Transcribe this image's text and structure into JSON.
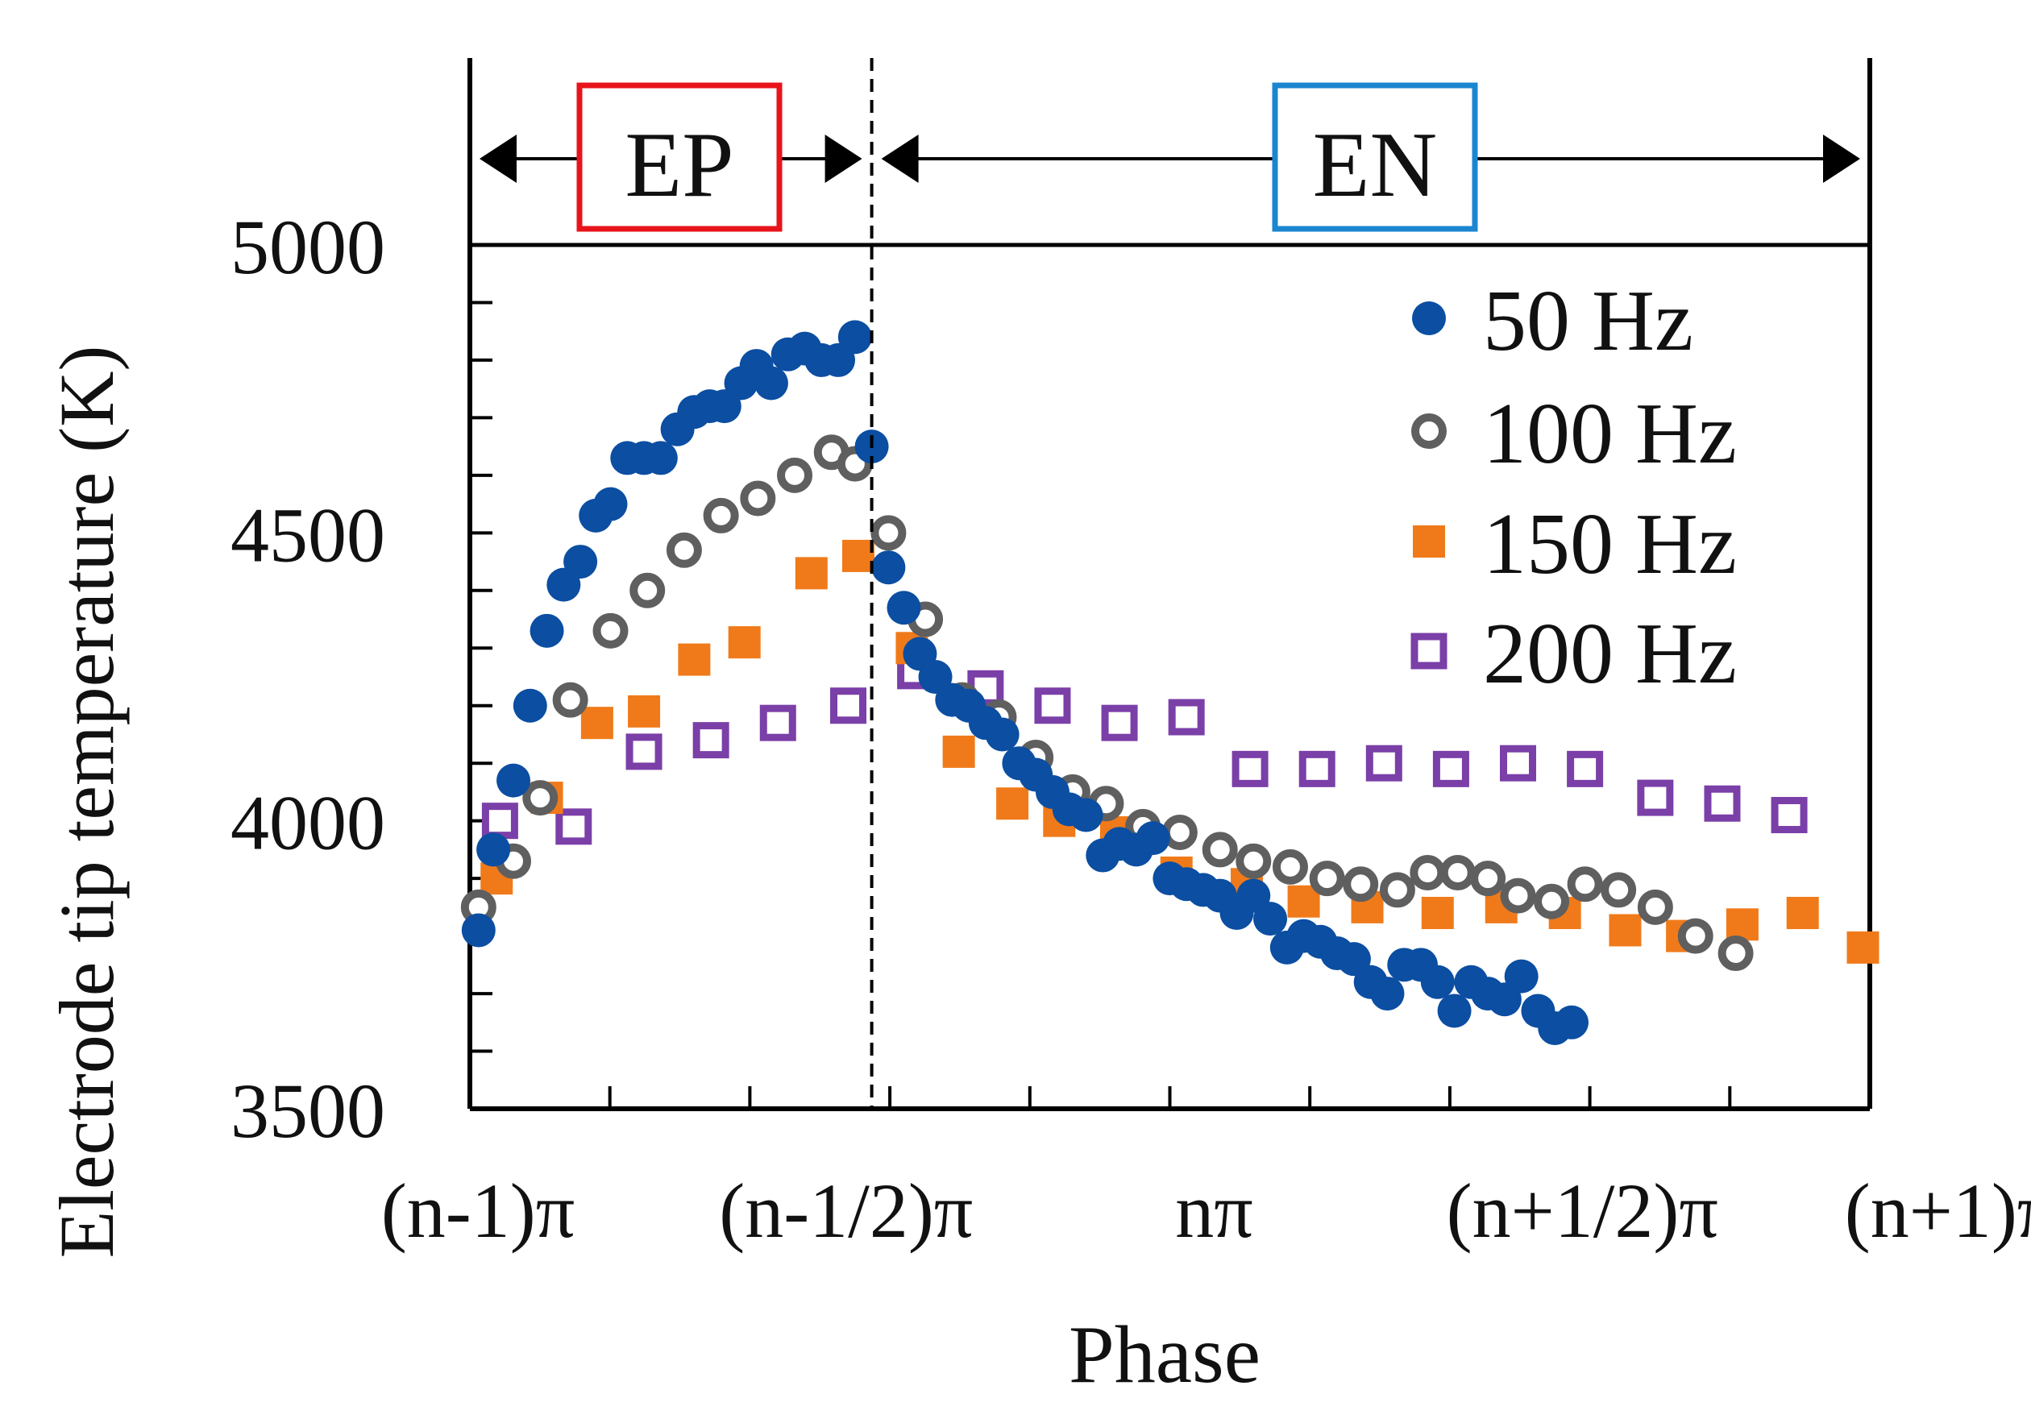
{
  "chart_data": {
    "type": "scatter",
    "xlabel": "Phase",
    "ylabel": "Electrode tip temperature (K)",
    "xlim": [
      0,
      2
    ],
    "ylim": [
      3500,
      5000
    ],
    "xticks": [
      0,
      0.2,
      0.4,
      0.6,
      0.8,
      1.0,
      1.2,
      1.4,
      1.6,
      1.8,
      2.0
    ],
    "xtick_labels": [
      {
        "x": 0,
        "label": "(n-1)π"
      },
      {
        "x": 0.5,
        "label": "(n-1/2)π"
      },
      {
        "x": 1.0,
        "label": "nπ"
      },
      {
        "x": 1.5,
        "label": "(n+1/2)π"
      },
      {
        "x": 2.0,
        "label": "(n+1)π"
      }
    ],
    "yticks": [
      3500,
      3600,
      3700,
      3800,
      3900,
      4000,
      4100,
      4200,
      4300,
      4400,
      4500,
      4600,
      4700,
      4800,
      4900,
      5000
    ],
    "ytick_labels": [
      {
        "y": 3500,
        "label": "3500"
      },
      {
        "y": 4000,
        "label": "4000"
      },
      {
        "y": 4500,
        "label": "4500"
      },
      {
        "y": 5000,
        "label": "5000"
      }
    ],
    "divider_x": 0.6,
    "regions": [
      {
        "label": "EP",
        "x_start": 0,
        "x_end": 0.6,
        "color": "#e8141b"
      },
      {
        "label": "EN",
        "x_start": 0.6,
        "x_end": 2.0,
        "color": "#1b86d0"
      }
    ],
    "legend_position": "top-right",
    "series": [
      {
        "name": "50 Hz",
        "marker": "filled-circle",
        "color": "#0b4ea2",
        "points": [
          [
            0.013,
            3810
          ],
          [
            0.035,
            3950
          ],
          [
            0.065,
            4070
          ],
          [
            0.09,
            4200
          ],
          [
            0.115,
            4330
          ],
          [
            0.14,
            4410
          ],
          [
            0.165,
            4450
          ],
          [
            0.188,
            4530
          ],
          [
            0.21,
            4550
          ],
          [
            0.235,
            4630
          ],
          [
            0.26,
            4630
          ],
          [
            0.285,
            4630
          ],
          [
            0.31,
            4680
          ],
          [
            0.335,
            4710
          ],
          [
            0.358,
            4720
          ],
          [
            0.38,
            4720
          ],
          [
            0.405,
            4760
          ],
          [
            0.428,
            4790
          ],
          [
            0.45,
            4760
          ],
          [
            0.475,
            4810
          ],
          [
            0.5,
            4820
          ],
          [
            0.525,
            4800
          ],
          [
            0.55,
            4800
          ],
          [
            0.575,
            4840
          ],
          [
            0.6,
            4650
          ],
          [
            0.625,
            4440
          ],
          [
            0.648,
            4370
          ],
          [
            0.672,
            4290
          ],
          [
            0.695,
            4250
          ],
          [
            0.72,
            4210
          ],
          [
            0.745,
            4200
          ],
          [
            0.77,
            4170
          ],
          [
            0.795,
            4150
          ],
          [
            0.82,
            4100
          ],
          [
            0.845,
            4080
          ],
          [
            0.87,
            4050
          ],
          [
            0.895,
            4020
          ],
          [
            0.92,
            4010
          ],
          [
            0.945,
            3940
          ],
          [
            0.97,
            3960
          ],
          [
            0.995,
            3950
          ],
          [
            1.02,
            3970
          ],
          [
            1.045,
            3900
          ],
          [
            1.07,
            3890
          ],
          [
            1.095,
            3880
          ],
          [
            1.12,
            3870
          ],
          [
            1.145,
            3840
          ],
          [
            1.17,
            3870
          ],
          [
            1.195,
            3830
          ],
          [
            1.22,
            3780
          ],
          [
            1.245,
            3800
          ],
          [
            1.27,
            3790
          ],
          [
            1.295,
            3770
          ],
          [
            1.32,
            3760
          ],
          [
            1.345,
            3720
          ],
          [
            1.37,
            3700
          ],
          [
            1.395,
            3750
          ],
          [
            1.42,
            3750
          ],
          [
            1.445,
            3720
          ],
          [
            1.47,
            3670
          ],
          [
            1.495,
            3720
          ],
          [
            1.52,
            3700
          ],
          [
            1.545,
            3690
          ],
          [
            1.57,
            3730
          ],
          [
            1.595,
            3670
          ],
          [
            1.62,
            3640
          ],
          [
            1.645,
            3650
          ]
        ]
      },
      {
        "name": "100 Hz",
        "marker": "open-circle",
        "color": "#5f5f5f",
        "points": [
          [
            0.013,
            3850
          ],
          [
            0.065,
            3930
          ],
          [
            0.105,
            4040
          ],
          [
            0.15,
            4210
          ],
          [
            0.21,
            4330
          ],
          [
            0.265,
            4400
          ],
          [
            0.32,
            4470
          ],
          [
            0.375,
            4530
          ],
          [
            0.43,
            4560
          ],
          [
            0.485,
            4600
          ],
          [
            0.54,
            4640
          ],
          [
            0.575,
            4620
          ],
          [
            0.625,
            4500
          ],
          [
            0.68,
            4350
          ],
          [
            0.735,
            4210
          ],
          [
            0.79,
            4180
          ],
          [
            0.845,
            4110
          ],
          [
            0.9,
            4050
          ],
          [
            0.95,
            4030
          ],
          [
            1.005,
            3990
          ],
          [
            1.06,
            3980
          ],
          [
            1.12,
            3950
          ],
          [
            1.17,
            3930
          ],
          [
            1.225,
            3920
          ],
          [
            1.28,
            3900
          ],
          [
            1.33,
            3890
          ],
          [
            1.385,
            3880
          ],
          [
            1.43,
            3910
          ],
          [
            1.475,
            3910
          ],
          [
            1.52,
            3900
          ],
          [
            1.565,
            3870
          ],
          [
            1.615,
            3860
          ],
          [
            1.665,
            3890
          ],
          [
            1.715,
            3880
          ],
          [
            1.77,
            3850
          ],
          [
            1.83,
            3800
          ],
          [
            1.89,
            3770
          ]
        ]
      },
      {
        "name": "150 Hz",
        "marker": "filled-square",
        "color": "#f07a1a",
        "points": [
          [
            0.04,
            3900
          ],
          [
            0.115,
            4040
          ],
          [
            0.19,
            4170
          ],
          [
            0.26,
            4190
          ],
          [
            0.335,
            4280
          ],
          [
            0.41,
            4310
          ],
          [
            0.51,
            4430
          ],
          [
            0.58,
            4460
          ],
          [
            0.66,
            4300
          ],
          [
            0.73,
            4120
          ],
          [
            0.81,
            4030
          ],
          [
            0.88,
            4000
          ],
          [
            0.965,
            3980
          ],
          [
            1.055,
            3910
          ],
          [
            1.16,
            3890
          ],
          [
            1.245,
            3860
          ],
          [
            1.34,
            3850
          ],
          [
            1.445,
            3840
          ],
          [
            1.54,
            3850
          ],
          [
            1.635,
            3840
          ],
          [
            1.725,
            3810
          ],
          [
            1.81,
            3800
          ],
          [
            1.9,
            3820
          ],
          [
            1.99,
            3840
          ],
          [
            2.08,
            3780
          ]
        ]
      },
      {
        "name": "200 Hz",
        "marker": "open-square",
        "color": "#7b3fa8",
        "points": [
          [
            0.045,
            4000
          ],
          [
            0.155,
            3990
          ],
          [
            0.26,
            4120
          ],
          [
            0.36,
            4140
          ],
          [
            0.46,
            4170
          ],
          [
            0.565,
            4200
          ],
          [
            0.665,
            4260
          ],
          [
            0.77,
            4230
          ],
          [
            0.87,
            4200
          ],
          [
            0.97,
            4170
          ],
          [
            1.07,
            4180
          ],
          [
            1.165,
            4090
          ],
          [
            1.265,
            4090
          ],
          [
            1.365,
            4100
          ],
          [
            1.465,
            4090
          ],
          [
            1.565,
            4100
          ],
          [
            1.665,
            4090
          ],
          [
            1.77,
            4040
          ],
          [
            1.87,
            4030
          ],
          [
            1.97,
            4010
          ]
        ]
      }
    ]
  }
}
